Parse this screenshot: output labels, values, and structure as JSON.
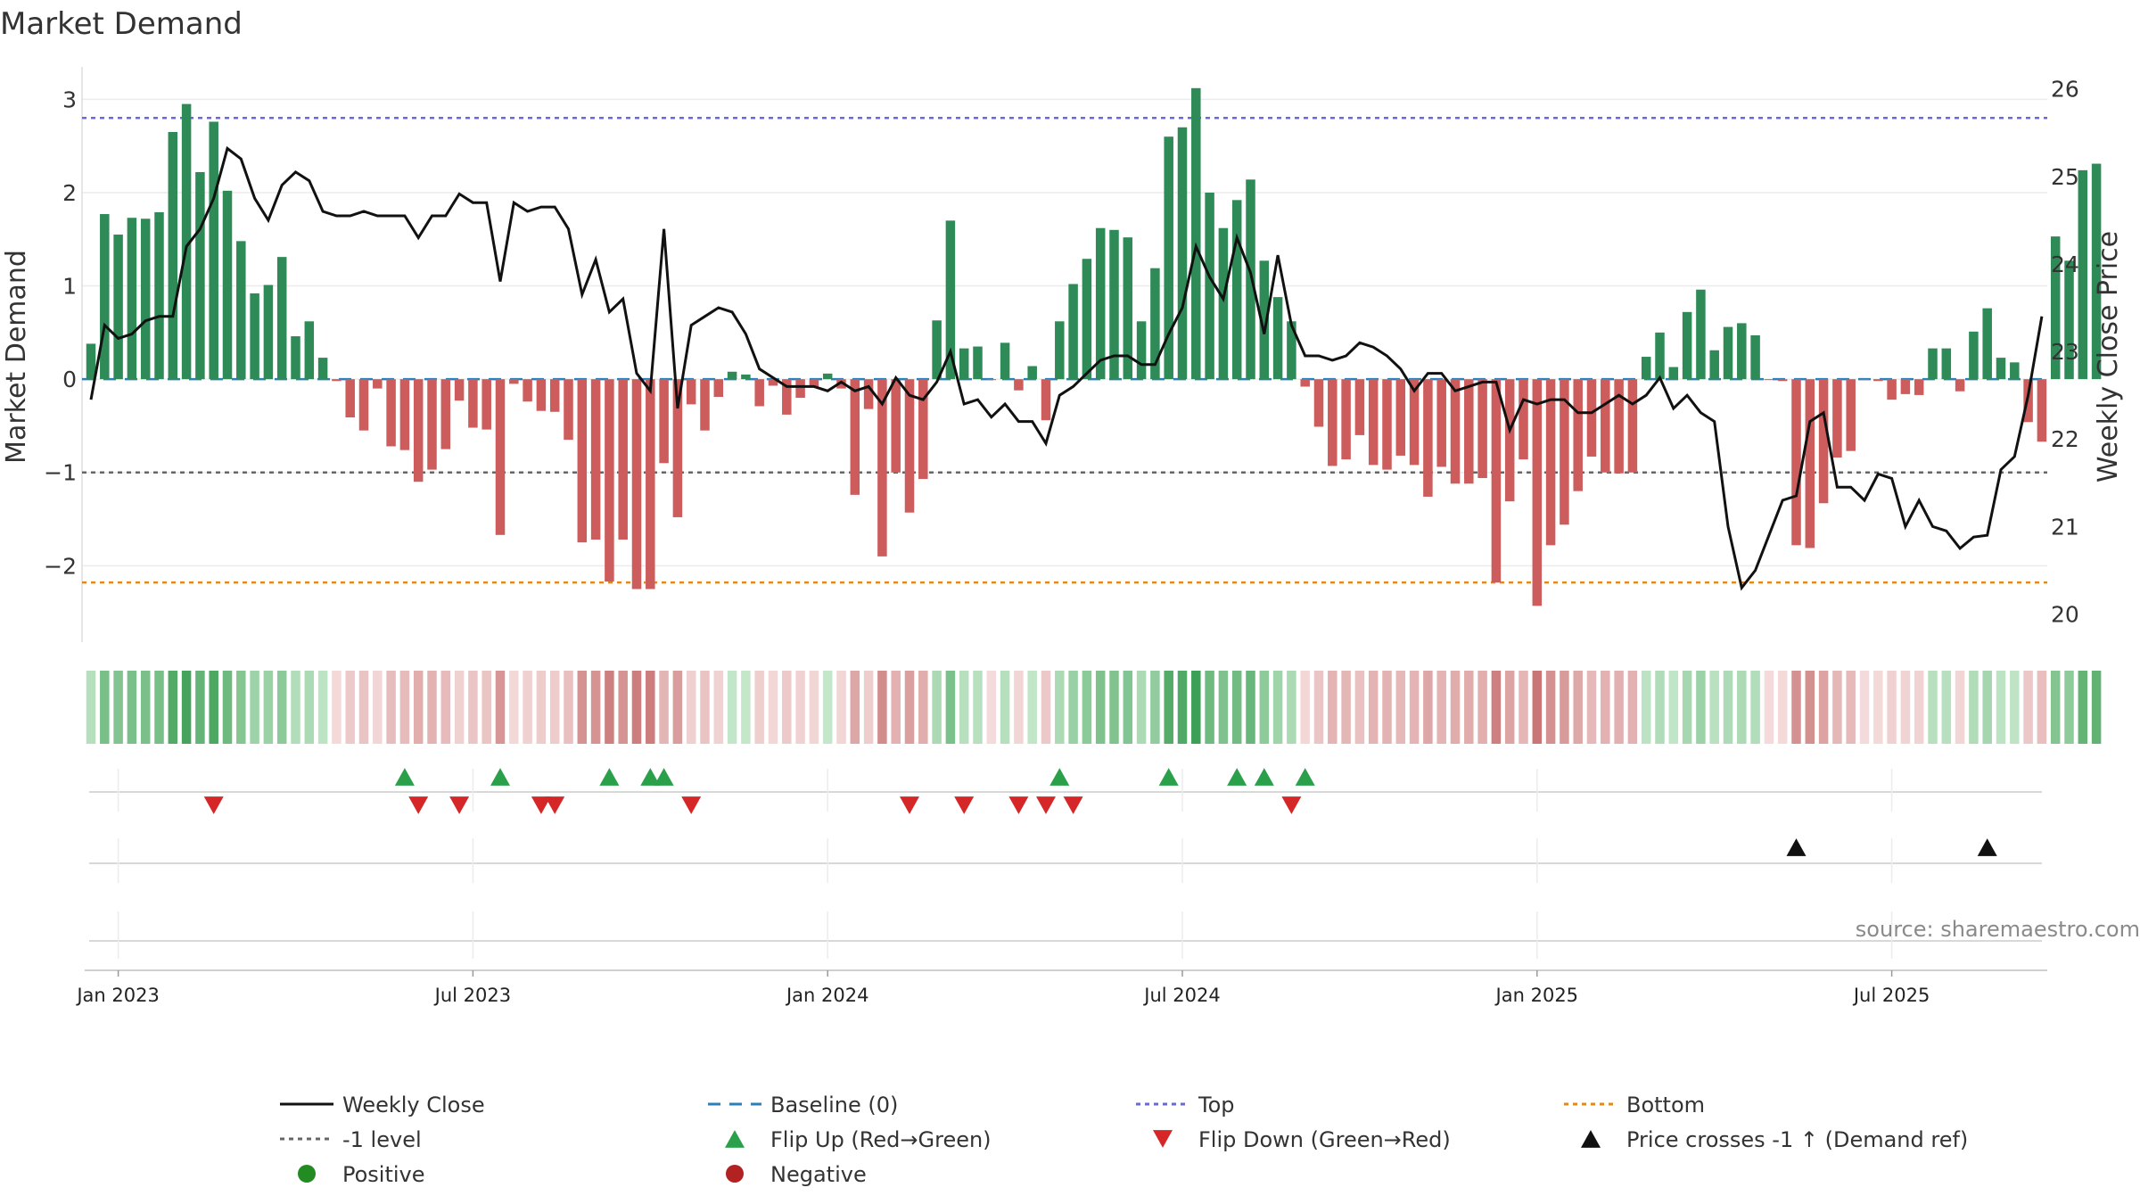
{
  "chart_data": {
    "type": "bar",
    "title": "Market Demand",
    "ylabel": "Market Demand",
    "y2label": "Weekly Close Price",
    "ylim": [
      -2.8,
      3.3
    ],
    "y2lim": [
      19.7,
      26.2
    ],
    "y_ticks": [
      3,
      2,
      1,
      0,
      -1,
      -2
    ],
    "y_tick_labels": [
      "3",
      "2",
      "1",
      "0",
      "−1",
      "−2"
    ],
    "y2_ticks": [
      26,
      25,
      24,
      23,
      22,
      21,
      20
    ],
    "y2_tick_labels": [
      "26",
      "25",
      "24",
      "23",
      "22",
      "21",
      "20"
    ],
    "x_start": "2022-12-23",
    "weeks": 146,
    "x_ticks": [
      "Jan 2023",
      "Jul 2023",
      "Jan 2024",
      "Jul 2024",
      "Jan 2025",
      "Jul 2025"
    ],
    "x_tick_index": [
      2,
      28,
      54,
      80,
      106,
      132
    ],
    "reference_lines": {
      "baseline": 0,
      "minus_one": -1,
      "top": 2.8,
      "bottom": -2.18
    },
    "demand": [
      0.38,
      1.77,
      1.55,
      1.73,
      1.72,
      1.79,
      2.65,
      2.95,
      2.22,
      2.76,
      2.02,
      1.48,
      0.92,
      1.01,
      1.31,
      0.46,
      0.62,
      0.23,
      -0.02,
      -0.41,
      -0.55,
      -0.1,
      -0.72,
      -0.76,
      -1.1,
      -0.97,
      -0.75,
      -0.23,
      -0.52,
      -0.54,
      -1.67,
      -0.05,
      -0.24,
      -0.34,
      -0.35,
      -0.65,
      -1.75,
      -1.72,
      -2.17,
      -1.72,
      -2.25,
      -2.25,
      -0.9,
      -1.48,
      -0.27,
      -0.55,
      -0.19,
      0.08,
      0.05,
      -0.29,
      -0.07,
      -0.38,
      -0.2,
      -0.09,
      0.06,
      -0.1,
      -1.24,
      -0.32,
      -1.9,
      -1.0,
      -1.43,
      -1.07,
      0.63,
      1.7,
      0.33,
      0.35,
      -0.01,
      0.39,
      -0.12,
      0.14,
      -0.44,
      0.62,
      1.02,
      1.29,
      1.62,
      1.6,
      1.52,
      0.62,
      1.19,
      2.6,
      2.7,
      3.12,
      2.0,
      1.62,
      1.92,
      2.14,
      1.27,
      0.88,
      0.62,
      -0.08,
      -0.51,
      -0.93,
      -0.86,
      -0.6,
      -0.92,
      -0.97,
      -0.82,
      -0.92,
      -1.26,
      -0.94,
      -1.12,
      -1.12,
      -1.06,
      -2.18,
      -1.31,
      -0.86,
      -2.43,
      -1.78,
      -1.56,
      -1.2,
      -0.83,
      -1.0,
      -1.01,
      -1.0,
      0.24,
      0.5,
      0.13,
      0.72,
      0.96,
      0.31,
      0.56,
      0.6,
      0.47,
      -0.01,
      -0.02,
      -1.78,
      -1.81,
      -1.33,
      -0.84,
      -0.77,
      -0.01,
      -0.02,
      -0.22,
      -0.16,
      -0.17,
      0.33,
      0.33,
      -0.13,
      0.51,
      0.76,
      0.23,
      0.18,
      -0.46,
      -0.67,
      1.53,
      1.27,
      2.24,
      2.31
    ],
    "close": [
      22.45,
      23.3,
      23.15,
      23.2,
      23.35,
      23.4,
      23.4,
      24.2,
      24.4,
      24.75,
      25.32,
      25.2,
      24.75,
      24.5,
      24.9,
      25.05,
      24.95,
      24.6,
      24.55,
      24.55,
      24.6,
      24.55,
      24.55,
      24.55,
      24.3,
      24.55,
      24.55,
      24.8,
      24.7,
      24.7,
      23.8,
      24.7,
      24.6,
      24.65,
      24.65,
      24.4,
      23.65,
      24.05,
      23.45,
      23.6,
      22.75,
      22.55,
      24.4,
      22.35,
      23.3,
      23.4,
      23.5,
      23.45,
      23.2,
      22.8,
      22.7,
      22.6,
      22.6,
      22.6,
      22.55,
      22.65,
      22.55,
      22.6,
      22.4,
      22.7,
      22.5,
      22.45,
      22.65,
      23.0,
      22.4,
      22.45,
      22.25,
      22.4,
      22.2,
      22.2,
      21.95,
      22.5,
      22.6,
      22.75,
      22.9,
      22.95,
      22.95,
      22.85,
      22.85,
      23.2,
      23.5,
      24.2,
      23.85,
      23.6,
      24.3,
      23.9,
      23.2,
      24.1,
      23.3,
      22.95,
      22.95,
      22.9,
      22.95,
      23.1,
      23.05,
      22.95,
      22.8,
      22.55,
      22.75,
      22.75,
      22.55,
      22.6,
      22.65,
      22.65,
      22.1,
      22.45,
      22.4,
      22.45,
      22.45,
      22.3,
      22.3,
      22.4,
      22.5,
      22.4,
      22.5,
      22.7,
      22.35,
      22.5,
      22.3,
      22.2,
      21.0,
      20.3,
      20.5,
      20.9,
      21.3,
      21.35,
      22.2,
      22.3,
      21.45,
      21.45,
      21.3,
      21.6,
      21.55,
      21.0,
      21.3,
      21.0,
      20.95,
      20.75,
      20.88,
      20.9,
      21.65,
      21.8,
      22.5,
      23.4
    ],
    "flip_up_index": [
      23,
      30,
      38,
      41,
      42,
      71,
      79,
      84,
      86,
      89
    ],
    "flip_down_index": [
      9,
      24,
      27,
      33,
      34,
      44,
      60,
      64,
      68,
      70,
      72,
      88
    ],
    "price_cross_index": [
      125,
      139
    ],
    "legend": [
      {
        "label": "Weekly Close",
        "marker": "line-solid",
        "color": "#111111"
      },
      {
        "label": "Baseline (0)",
        "marker": "line-dashed",
        "color": "#2d7fb8"
      },
      {
        "label": "Top",
        "marker": "line-dotted",
        "color": "#6a6acc"
      },
      {
        "label": "Bottom",
        "marker": "line-dotted",
        "color": "#e08a1e"
      },
      {
        "label": "-1 level",
        "marker": "line-dotted",
        "color": "#666666"
      },
      {
        "label": "Flip Up (Red→Green)",
        "marker": "triangle-up",
        "color": "#2aa04a"
      },
      {
        "label": "Flip Down (Green→Red)",
        "marker": "triangle-down",
        "color": "#d62728"
      },
      {
        "label": "Price crosses -1 ↑ (Demand ref)",
        "marker": "triangle-up",
        "color": "#111111"
      },
      {
        "label": "Positive",
        "marker": "circle",
        "color": "#228b22"
      },
      {
        "label": "Negative",
        "marker": "circle",
        "color": "#b22222"
      }
    ],
    "source": "source: sharemaestro.com"
  },
  "colors": {
    "positive_bar": "#2e8b57",
    "negative_bar": "#cd5c5c",
    "close_line": "#111111",
    "baseline": "#2d7fb8",
    "top": "#6a6acc",
    "bottom": "#e08a1e",
    "minus_one": "#666666",
    "flip_up": "#2aa04a",
    "flip_down": "#d62728",
    "cross": "#111111"
  }
}
